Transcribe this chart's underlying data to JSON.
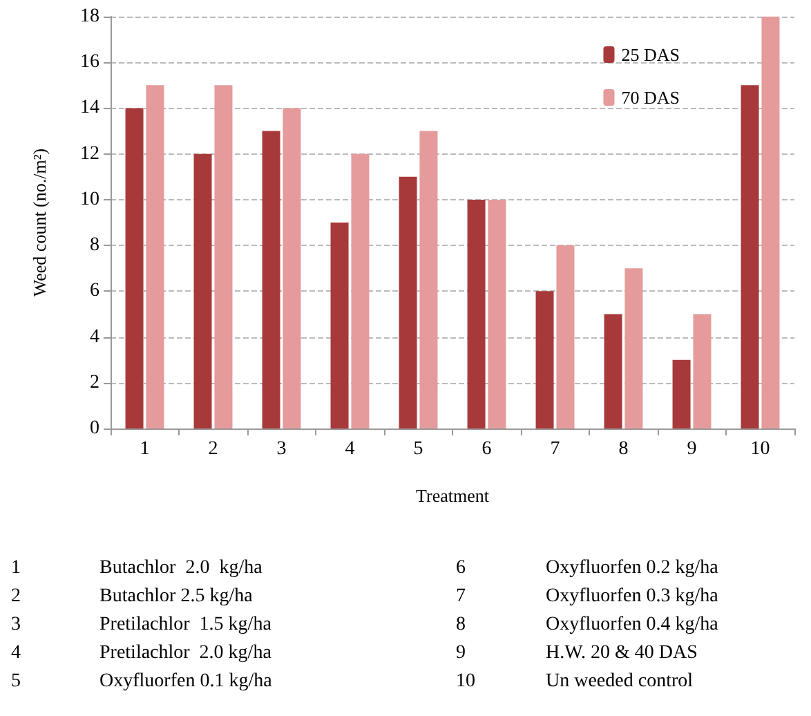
{
  "chart_data": {
    "type": "bar",
    "xlabel": "Treatment",
    "ylabel": "Weed count (no./m²)",
    "categories": [
      "1",
      "2",
      "3",
      "4",
      "5",
      "6",
      "7",
      "8",
      "9",
      "10"
    ],
    "series": [
      {
        "name": "25 DAS",
        "color": "#a8393a",
        "values": [
          14,
          12,
          13,
          9,
          11,
          10,
          6,
          5,
          3,
          15
        ]
      },
      {
        "name": "70 DAS",
        "color": "#e59a9b",
        "values": [
          15,
          15,
          14,
          12,
          13,
          10,
          8,
          7,
          5,
          18
        ]
      }
    ],
    "ylim": [
      0,
      18
    ],
    "yticks": [
      0,
      2,
      4,
      6,
      8,
      10,
      12,
      14,
      16,
      18
    ],
    "grid": "y",
    "legend": "top right",
    "annotations": [
      "1\tButachlor  2.0  kg/ha",
      "2\tButachlor 2.5 kg/ha",
      "3\tPretilachlor  1.5 kg/ha",
      "4\tPretilachlor  2.0 kg/ha",
      "5\tOxyfluorfen 0.1 kg/ha",
      "6\tOxyfluorfen 0.2 kg/ha",
      "7\tOxyfluorfen 0.3 kg/ha",
      "8\tOxyfluorfen 0.4 kg/ha",
      "9\tH.W. 20 & 40 DAS",
      "10\tUn weeded control"
    ]
  }
}
